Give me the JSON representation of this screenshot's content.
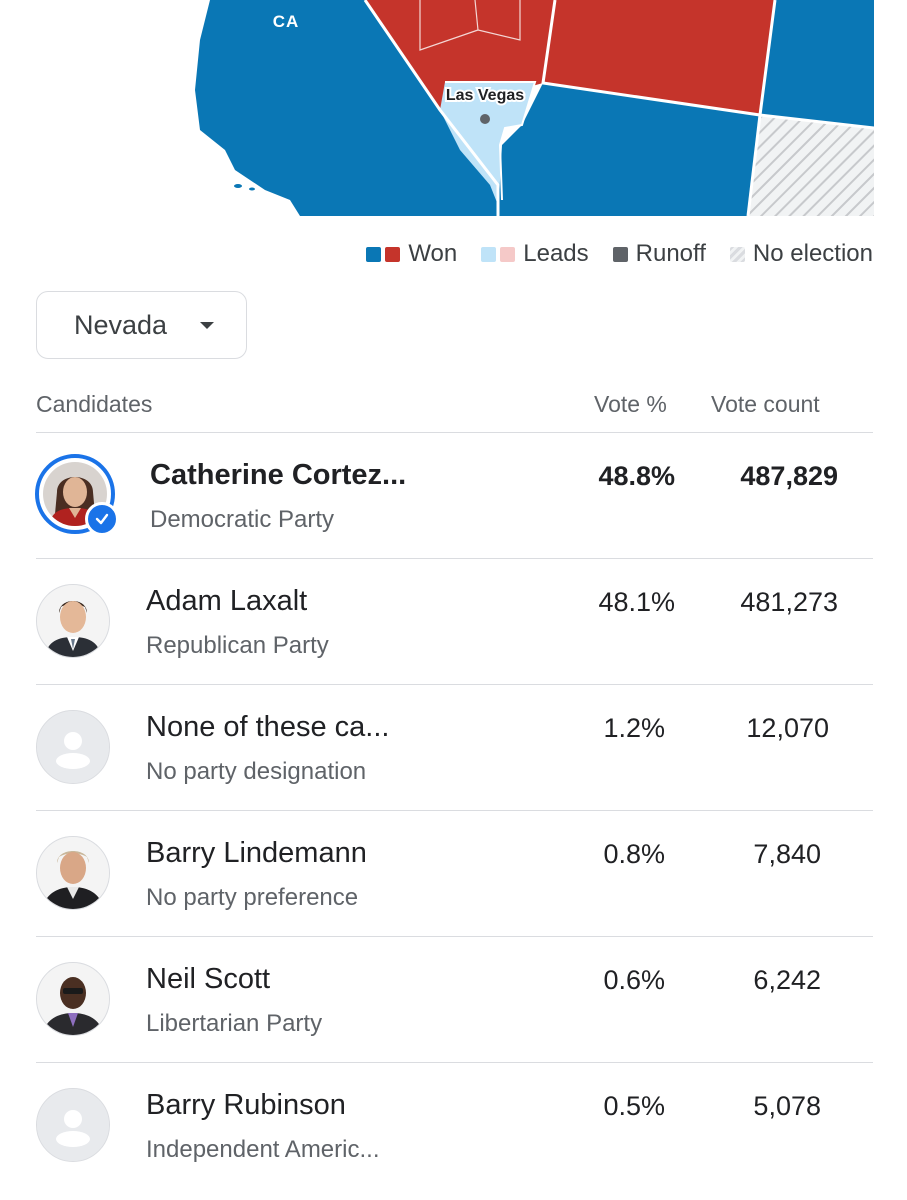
{
  "map": {
    "state_label": "CA",
    "city_label": "Las Vegas",
    "colors": {
      "dem_won": "#0a77b5",
      "rep_won": "#c5342b",
      "dem_leads": "#bfe3f8",
      "rep_leads": "#f5c9c8",
      "runoff": "#5f6368",
      "background": "#ffffff"
    }
  },
  "legend": {
    "won": "Won",
    "leads": "Leads",
    "runoff": "Runoff",
    "no_election": "No election"
  },
  "state_selector": {
    "value": "Nevada",
    "icon": "chevron-down-icon"
  },
  "table": {
    "headers": {
      "candidates": "Candidates",
      "vote_pct": "Vote %",
      "vote_count": "Vote count"
    },
    "rows": [
      {
        "name": "Catherine Cortez...",
        "party": "Democratic Party",
        "pct": "48.8%",
        "count": "487,829",
        "winner": true
      },
      {
        "name": "Adam Laxalt",
        "party": "Republican Party",
        "pct": "48.1%",
        "count": "481,273"
      },
      {
        "name": "None of these ca...",
        "party": "No party designation",
        "pct": "1.2%",
        "count": "12,070"
      },
      {
        "name": "Barry Lindemann",
        "party": "No party preference",
        "pct": "0.8%",
        "count": "7,840"
      },
      {
        "name": "Neil Scott",
        "party": "Libertarian Party",
        "pct": "0.6%",
        "count": "6,242"
      },
      {
        "name": "Barry Rubinson",
        "party": "Independent Americ...",
        "pct": "0.5%",
        "count": "5,078"
      }
    ]
  }
}
